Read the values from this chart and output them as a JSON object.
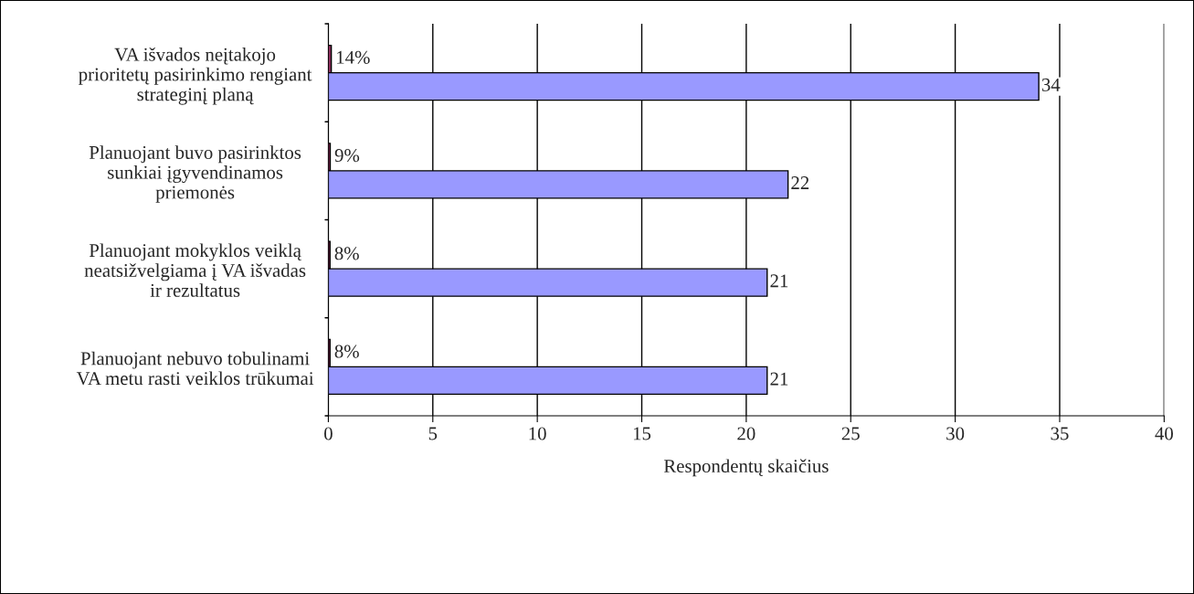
{
  "chart_data": {
    "type": "bar",
    "orientation": "horizontal",
    "xlabel": "Respondentų skaičius",
    "categories": [
      "VA išvados neįtakojo\nprioritetų pasirinkimo rengiant\nstrateginį planą",
      "Planuojant buvo pasirinktos\nsunkiai įgyvendinamos\npriemonės",
      "Planuojant mokyklos veiklą\nneatsižvelgiama į VA išvadas\nir rezultatus",
      "Planuojant nebuvo tobulinami\nVA metu rasti veiklos trūkumai"
    ],
    "series": [
      {
        "color": "#993366",
        "values": [
          0.14,
          0.09,
          0.08,
          0.08
        ],
        "value_labels": [
          "14%",
          "9%",
          "8%",
          "8%"
        ]
      },
      {
        "color": "#9999ff",
        "values": [
          34,
          22,
          21,
          21
        ],
        "value_labels": [
          "34",
          "22",
          "21",
          "21"
        ]
      }
    ],
    "xlim": [
      0,
      40
    ],
    "xticks": [
      0,
      5,
      10,
      15,
      20,
      25,
      30,
      35,
      40
    ],
    "grid": "x",
    "legend": false
  }
}
